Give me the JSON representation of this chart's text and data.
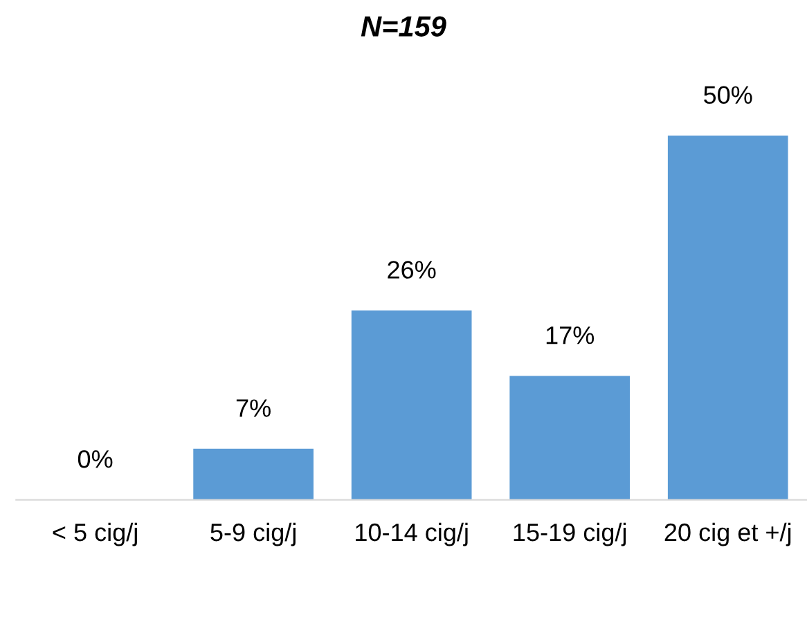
{
  "chart_data": {
    "type": "bar",
    "title": "N=159",
    "categories": [
      "< 5 cig/j",
      "5-9 cig/j",
      "10-14 cig/j",
      "15-19 cig/j",
      "20 cig et +/j"
    ],
    "values": [
      0,
      7,
      26,
      17,
      50
    ],
    "value_labels": [
      "0%",
      "7%",
      "26%",
      "17%",
      "50%"
    ],
    "color": "#5b9bd5",
    "tick_labels": "x",
    "grid": false,
    "legend": false
  }
}
